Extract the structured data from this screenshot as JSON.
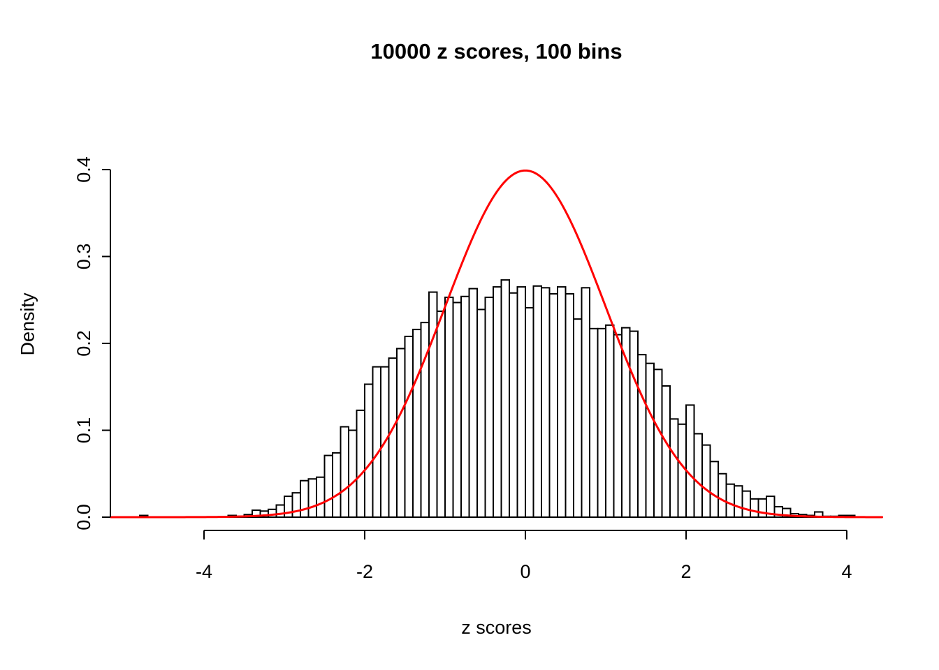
{
  "figure": {
    "background": "#ffffff",
    "text_color": "#000000"
  },
  "chart_data": {
    "type": "bar",
    "subtype": "histogram-with-density-curve",
    "title": "10000 z scores, 100 bins",
    "xlabel": "z scores",
    "ylabel": "Density",
    "bin_start": -4.8,
    "bin_width": 0.1,
    "densities": [
      0.002,
      0,
      0,
      0,
      0,
      0,
      0,
      0,
      0,
      0,
      0,
      0.002,
      0.001,
      0.003,
      0.008,
      0.007,
      0.009,
      0.014,
      0.024,
      0.028,
      0.042,
      0.044,
      0.046,
      0.071,
      0.074,
      0.104,
      0.1,
      0.123,
      0.153,
      0.173,
      0.173,
      0.183,
      0.194,
      0.208,
      0.216,
      0.224,
      0.259,
      0.237,
      0.253,
      0.247,
      0.254,
      0.263,
      0.239,
      0.253,
      0.265,
      0.273,
      0.258,
      0.265,
      0.241,
      0.266,
      0.264,
      0.257,
      0.265,
      0.257,
      0.228,
      0.264,
      0.217,
      0.217,
      0.221,
      0.21,
      0.218,
      0.214,
      0.187,
      0.177,
      0.17,
      0.151,
      0.113,
      0.107,
      0.129,
      0.096,
      0.083,
      0.064,
      0.05,
      0.038,
      0.036,
      0.03,
      0.021,
      0.021,
      0.024,
      0.012,
      0.01,
      0.004,
      0.003,
      0.002,
      0.006,
      0.001,
      0.001,
      0.002,
      0.002
    ],
    "x_ticks": [
      "-4",
      "-2",
      "0",
      "2",
      "4"
    ],
    "x_tick_values": [
      -4,
      -2,
      0,
      2,
      4
    ],
    "y_ticks": [
      "0.0",
      "0.1",
      "0.2",
      "0.3",
      "0.4"
    ],
    "y_tick_values": [
      0,
      0.1,
      0.2,
      0.3,
      0.4
    ],
    "xlim": [
      -5.16,
      4.44
    ],
    "ylim": [
      0,
      0.4
    ],
    "grid": false,
    "legend": "none",
    "bar_fill": "#ffffff",
    "bar_stroke": "#000000",
    "axis_color": "#000000",
    "overlay_curve": {
      "name": "standard normal density",
      "mean": 0,
      "sd": 1,
      "peak": 0.3989,
      "color": "#ff0000"
    }
  }
}
